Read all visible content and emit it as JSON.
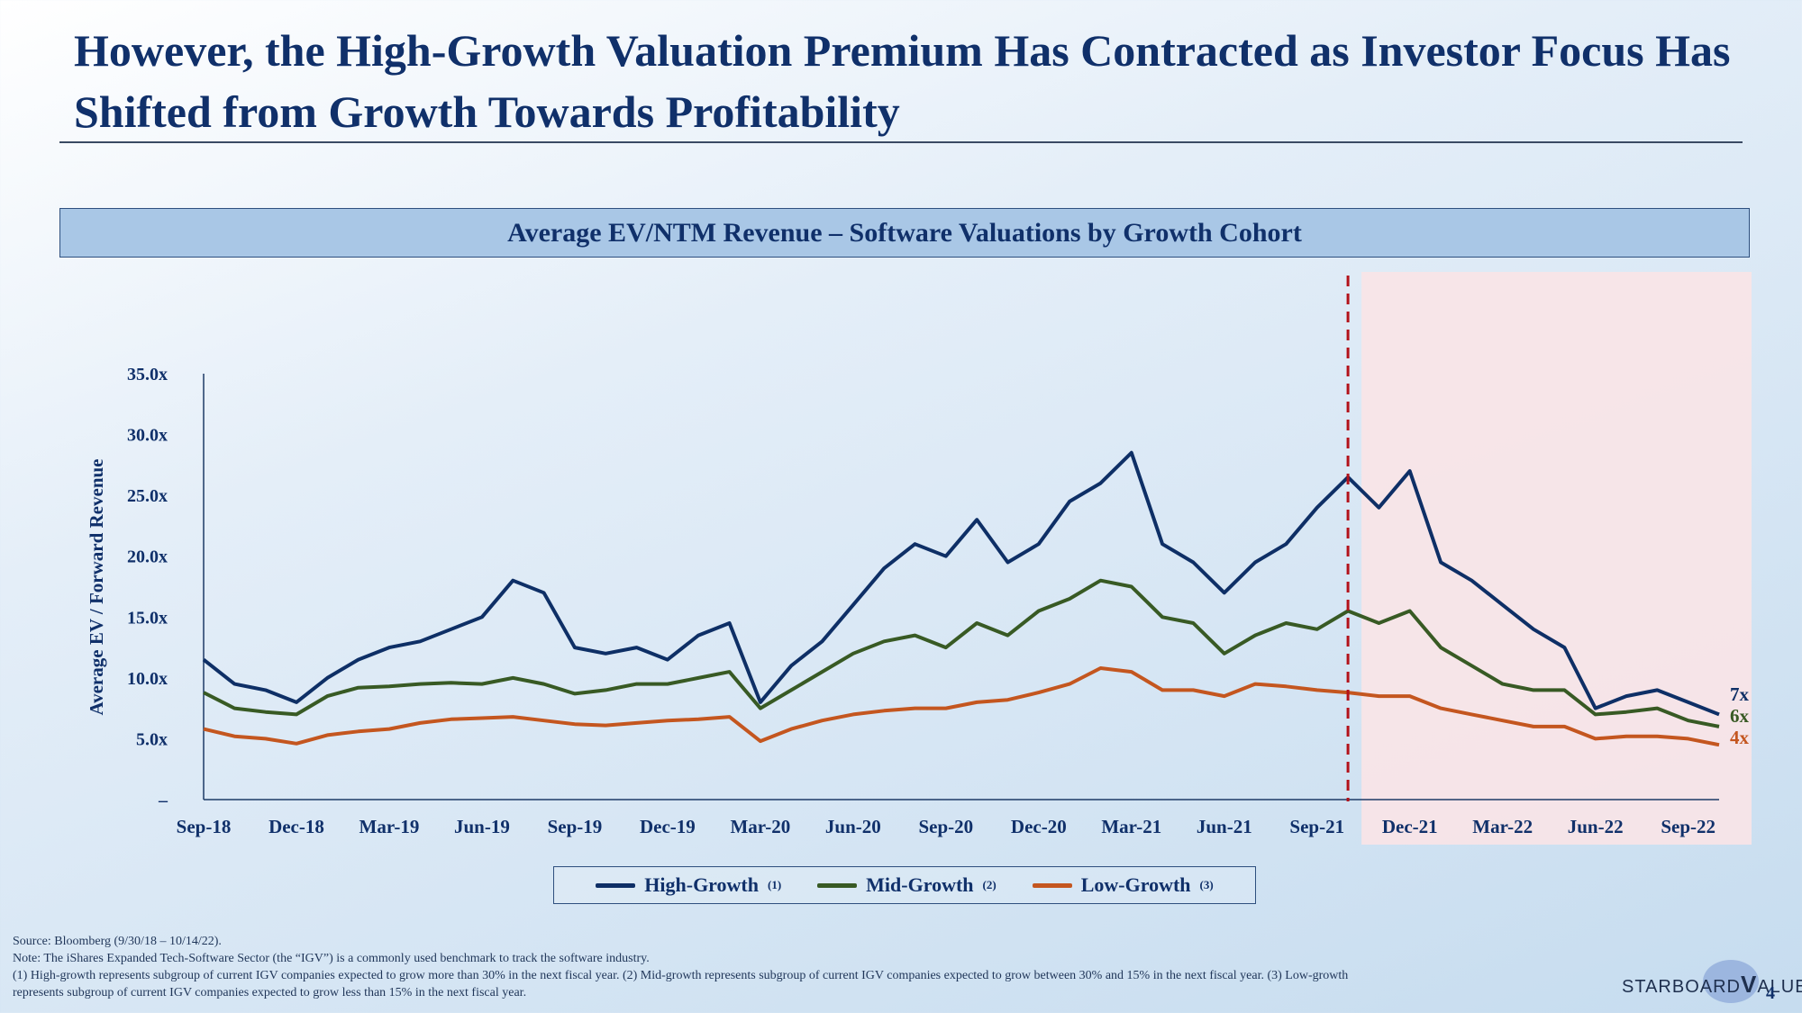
{
  "title": "However, the High-Growth Valuation Premium Has Contracted as Investor Focus Has Shifted from Growth Towards Profitability",
  "chart_header": "Average EV/NTM Revenue – Software Valuations by Growth Cohort",
  "colors": {
    "high": "#0e2f66",
    "mid": "#385a24",
    "low": "#c4561f",
    "shade": "#f9e4e7",
    "divider": "#b3121a"
  },
  "chart_data": {
    "type": "line",
    "ylabel": "Average EV / Forward Revenue",
    "ylim": [
      0,
      35
    ],
    "yticks": [
      0,
      5,
      10,
      15,
      20,
      25,
      30,
      35
    ],
    "ytick_labels": [
      "–",
      "5.0x",
      "10.0x",
      "15.0x",
      "20.0x",
      "25.0x",
      "30.0x",
      "35.0x"
    ],
    "x_tick_labels": [
      "Sep-18",
      "Dec-18",
      "Mar-19",
      "Jun-19",
      "Sep-19",
      "Dec-19",
      "Mar-20",
      "Jun-20",
      "Sep-20",
      "Dec-20",
      "Mar-21",
      "Jun-21",
      "Sep-21",
      "Dec-21",
      "Mar-22",
      "Jun-22",
      "Sep-22"
    ],
    "x_months": [
      "2018-09",
      "2018-10",
      "2018-11",
      "2018-12",
      "2019-01",
      "2019-02",
      "2019-03",
      "2019-04",
      "2019-05",
      "2019-06",
      "2019-07",
      "2019-08",
      "2019-09",
      "2019-10",
      "2019-11",
      "2019-12",
      "2020-01",
      "2020-02",
      "2020-03",
      "2020-04",
      "2020-05",
      "2020-06",
      "2020-07",
      "2020-08",
      "2020-09",
      "2020-10",
      "2020-11",
      "2020-12",
      "2021-01",
      "2021-02",
      "2021-03",
      "2021-04",
      "2021-05",
      "2021-06",
      "2021-07",
      "2021-08",
      "2021-09",
      "2021-10",
      "2021-11",
      "2021-12",
      "2022-01",
      "2022-02",
      "2022-03",
      "2022-04",
      "2022-05",
      "2022-06",
      "2022-07",
      "2022-08",
      "2022-09",
      "2022-10"
    ],
    "shaded_from": "2021-10",
    "divider_at": "2021-10",
    "series": [
      {
        "name": "High-Growth",
        "marker": "(1)",
        "end_label": "7x",
        "values": [
          11.5,
          9.5,
          9.0,
          8.0,
          10.0,
          11.5,
          12.5,
          13.0,
          14.0,
          15.0,
          18.0,
          17.0,
          12.5,
          12.0,
          12.5,
          11.5,
          13.5,
          14.5,
          8.0,
          11.0,
          13.0,
          16.0,
          19.0,
          21.0,
          20.0,
          23.0,
          19.5,
          21.0,
          24.5,
          26.0,
          28.5,
          21.0,
          19.5,
          17.0,
          19.5,
          21.0,
          24.0,
          26.5,
          24.0,
          27.0,
          19.5,
          18.0,
          16.0,
          14.0,
          12.5,
          7.5,
          8.5,
          9.0,
          8.0,
          7.0
        ]
      },
      {
        "name": "Mid-Growth",
        "marker": "(2)",
        "end_label": "6x",
        "values": [
          8.8,
          7.5,
          7.2,
          7.0,
          8.5,
          9.2,
          9.3,
          9.5,
          9.6,
          9.5,
          10.0,
          9.5,
          8.7,
          9.0,
          9.5,
          9.5,
          10.0,
          10.5,
          7.5,
          9.0,
          10.5,
          12.0,
          13.0,
          13.5,
          12.5,
          14.5,
          13.5,
          15.5,
          16.5,
          18.0,
          17.5,
          15.0,
          14.5,
          12.0,
          13.5,
          14.5,
          14.0,
          15.5,
          14.5,
          15.5,
          12.5,
          11.0,
          9.5,
          9.0,
          9.0,
          7.0,
          7.2,
          7.5,
          6.5,
          6.0
        ]
      },
      {
        "name": "Low-Growth",
        "marker": "(3)",
        "end_label": "4x",
        "values": [
          5.8,
          5.2,
          5.0,
          4.6,
          5.3,
          5.6,
          5.8,
          6.3,
          6.6,
          6.7,
          6.8,
          6.5,
          6.2,
          6.1,
          6.3,
          6.5,
          6.6,
          6.8,
          4.8,
          5.8,
          6.5,
          7.0,
          7.3,
          7.5,
          7.5,
          8.0,
          8.2,
          8.8,
          9.5,
          10.8,
          10.5,
          9.0,
          9.0,
          8.5,
          9.5,
          9.3,
          9.0,
          8.8,
          8.5,
          8.5,
          7.5,
          7.0,
          6.5,
          6.0,
          6.0,
          5.0,
          5.2,
          5.2,
          5.0,
          4.5
        ]
      }
    ]
  },
  "footnotes": [
    "Source: Bloomberg (9/30/18 – 10/14/22).",
    "Note: The iShares Expanded Tech-Software Sector (the “IGV”) is a commonly used benchmark to track the software industry.",
    "(1) High-growth represents subgroup of current IGV companies expected to grow more than 30% in the next fiscal year. (2) Mid-growth represents subgroup of current IGV companies expected to grow between 30% and 15% in the next fiscal year. (3) Low-growth",
    "represents subgroup of current IGV companies expected to grow less than 15% in the next fiscal year."
  ],
  "logo": {
    "text": "Starboard Value",
    "left": "STARBOARD",
    "mark": "V",
    "right": "ALUE",
    "reg": "®"
  },
  "page_number": "4"
}
